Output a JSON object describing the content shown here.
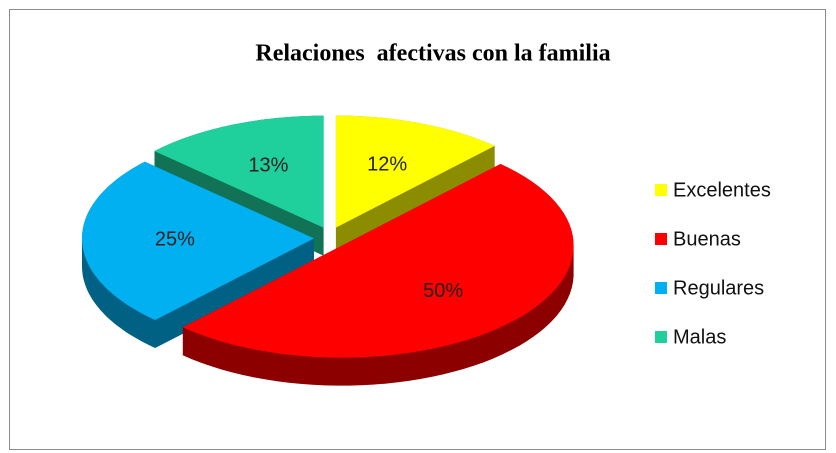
{
  "chart_data": {
    "type": "pie",
    "title": "Relaciones  afectivas con la familia",
    "categories": [
      "Excelentes",
      "Buenas",
      "Regulares",
      "Malas"
    ],
    "values": [
      12,
      50,
      25,
      13
    ],
    "value_labels": [
      "12%",
      "50%",
      "25%",
      "13%"
    ],
    "colors": [
      "#ffff00",
      "#ff0000",
      "#00b0f0",
      "#1fcf9c"
    ],
    "legend": "right"
  }
}
